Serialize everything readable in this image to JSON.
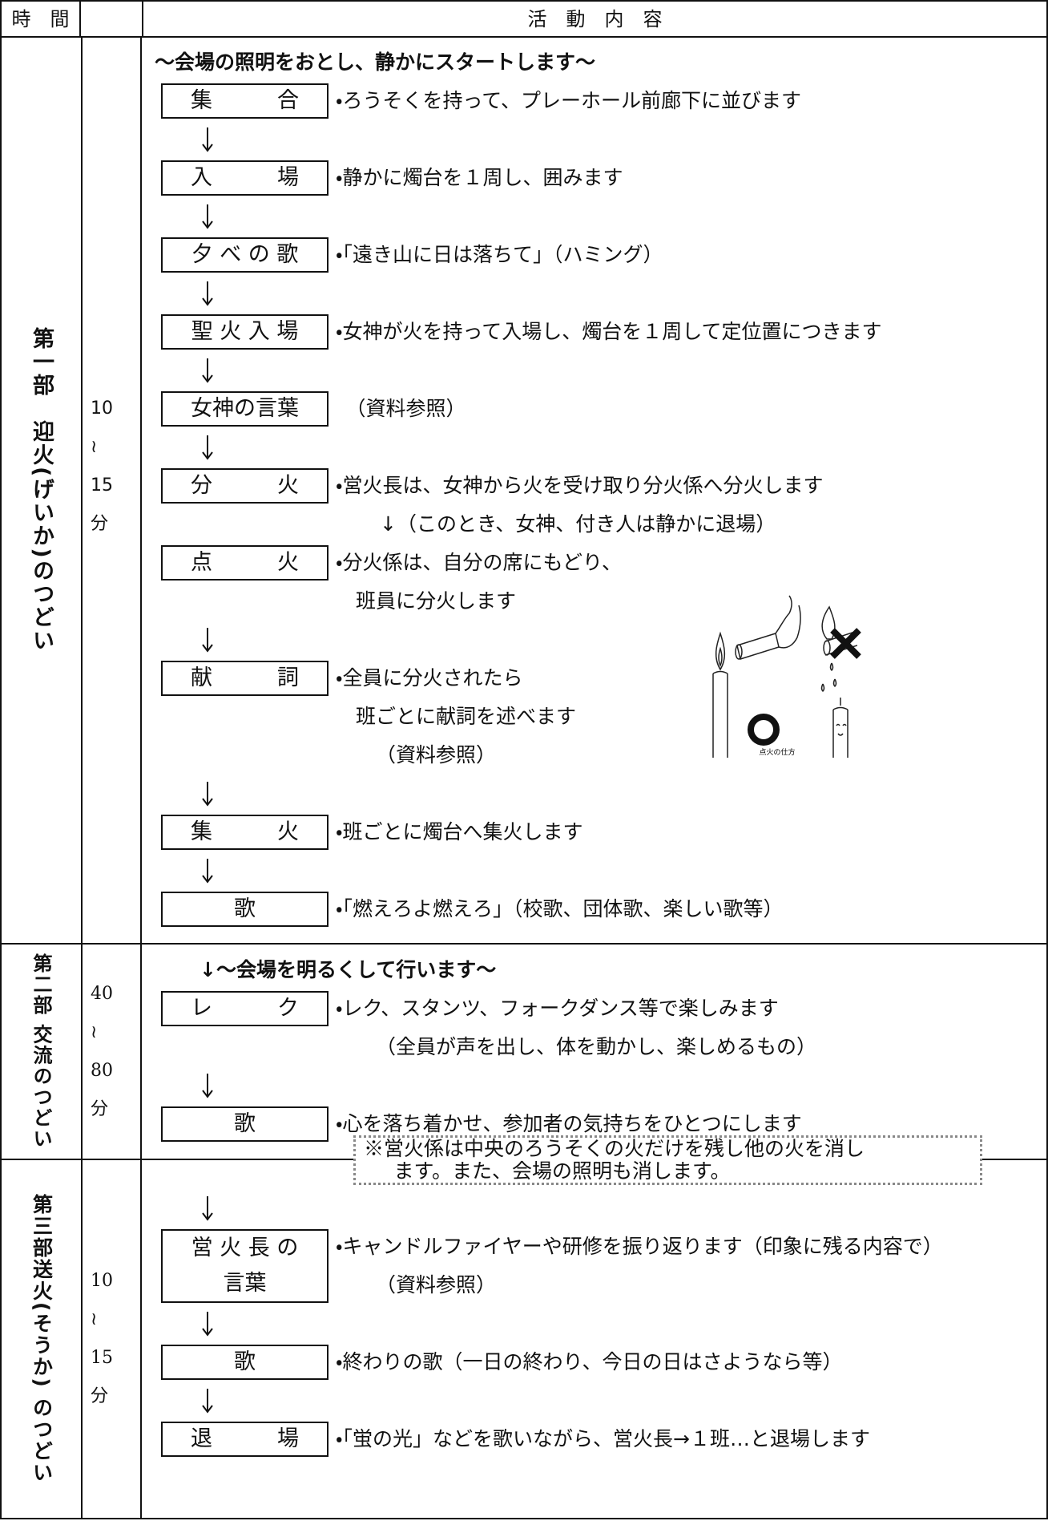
{
  "header": {
    "time": "時　間",
    "content": "活　動　内　容"
  },
  "sections": [
    {
      "title": "第一部　迎火(げいか)のつどい",
      "duration": [
        "10",
        "≀",
        "15",
        "分"
      ],
      "intro": "～会場の照明をおとし、静かにスタートします～",
      "steps": [
        {
          "label": "集　　　合",
          "lines": [
            "・ろうそくを持って、プレーホール前廊下に並びます"
          ]
        },
        {
          "label": "入　　　場",
          "lines": [
            "・静かに燭台を１周し、囲みます"
          ]
        },
        {
          "label": "夕 べ の 歌",
          "lines": [
            "・「遠き山に日は落ちて」（ハミング）"
          ]
        },
        {
          "label": "聖 火 入 場",
          "lines": [
            "・女神が火を持って入場し、燭台を１周して定位置につきます"
          ]
        },
        {
          "label": "女神の言葉",
          "lines": [
            "　（資料参照）"
          ]
        },
        {
          "label": "分　　　火",
          "lines": [
            "・営火長は、女神から火を受け取り分火係へ分火します",
            "↓（このとき、女神、付き人は静かに退場）"
          ]
        },
        {
          "label": "点　　　火",
          "lines": [
            "・分火係は、自分の席にもどり、",
            "班員に分火します"
          ]
        },
        {
          "label": "献　　　詞",
          "lines": [
            "・全員に分火されたら",
            "班ごとに献詞を述べます",
            "（資料参照）"
          ]
        },
        {
          "label": "集　　　火",
          "lines": [
            "・班ごとに燭台へ集火します"
          ]
        },
        {
          "label": "歌",
          "lines": [
            "・「燃えろよ燃えろ」（校歌、団体歌、楽しい歌等）"
          ]
        }
      ],
      "illustration": {
        "caption": "点火の仕方"
      }
    },
    {
      "title": "第二部 交流のつどい",
      "duration": [
        "40",
        "≀",
        "80",
        "分"
      ],
      "intro": "↓～会場を明るくして行います～",
      "steps": [
        {
          "label": "レ　　　ク",
          "lines": [
            "・レク、スタンツ、フォークダンス等で楽しみます",
            "（全員が声を出し、体を動かし、楽しめるもの）"
          ]
        },
        {
          "label": "歌",
          "lines": [
            "・心を落ち着かせ、参加者の気持ちをひとつにします"
          ]
        }
      ],
      "note": [
        "※営火係は中央のろうそくの火だけを残し他の火を消し",
        "ます。また、会場の照明も消します。"
      ]
    },
    {
      "title": "第三部送火(そうか) のつどい",
      "duration": [
        "10",
        "≀",
        "15",
        "分"
      ],
      "steps": [
        {
          "label": "営 火 長 の\n言葉",
          "lines": [
            "・キャンドルファイヤーや研修を振り返ります（印象に残る内容で）",
            "（資料参照）"
          ]
        },
        {
          "label": "歌",
          "lines": [
            "・終わりの歌（一日の終わり、今日の日はさようなら等）"
          ]
        },
        {
          "label": "退　　　場",
          "lines": [
            "・「蛍の光」などを歌いながら、営火長→１班…と退場します"
          ]
        }
      ]
    }
  ]
}
